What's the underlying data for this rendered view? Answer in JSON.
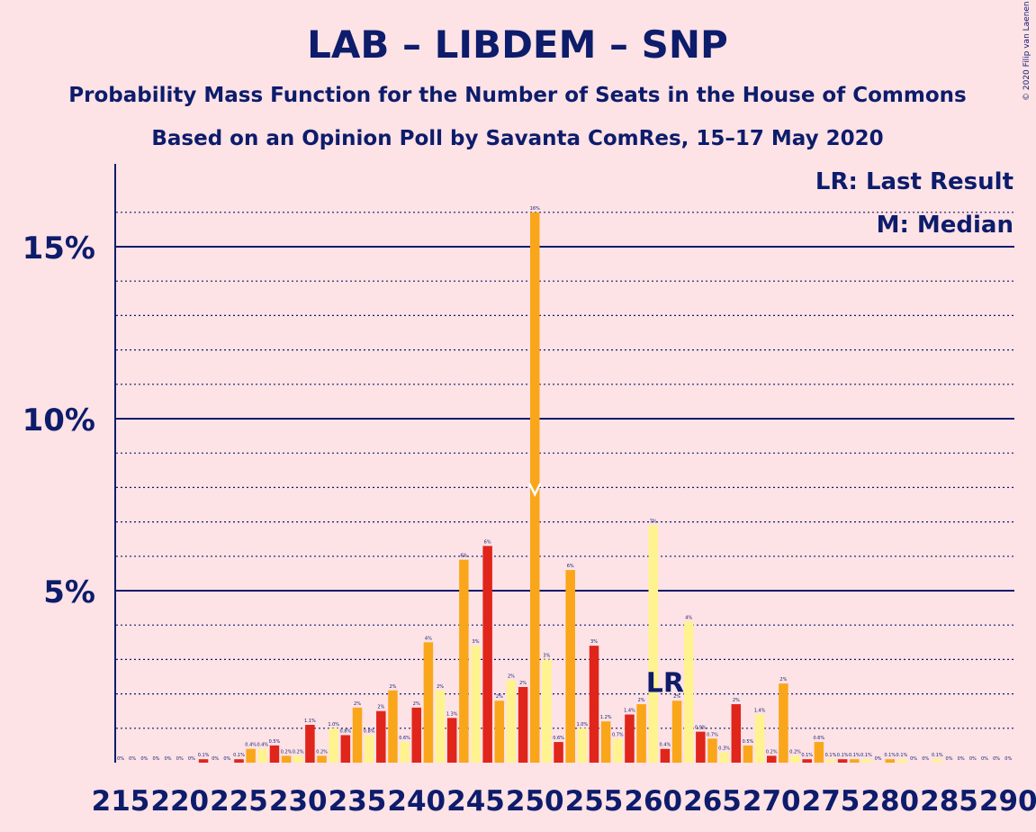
{
  "title": "LAB – LIBDEM – SNP",
  "subtitle1": "Probability Mass Function for the Number of Seats in the House of Commons",
  "subtitle2": "Based on an Opinion Poll by Savanta ComRes, 15–17 May 2020",
  "copyright": "© 2020 Filip van Laenen",
  "legend": {
    "lr": "LR: Last Result",
    "m": "M: Median"
  },
  "markers": {
    "lr_label": "LR",
    "lr_seat": 261,
    "median_seat": 250
  },
  "colors": {
    "background": "#FDE2E6",
    "text": "#0D1C6B",
    "red": "#E0251B",
    "orange": "#FAA61A",
    "yellow": "#FFF38F"
  },
  "chart_data": {
    "type": "bar",
    "xlim": [
      215,
      290
    ],
    "ylim": [
      0,
      17
    ],
    "y_ticks": [
      5,
      10,
      15
    ],
    "y_tick_labels": [
      "5%",
      "10%",
      "15%"
    ],
    "x_ticks": [
      215,
      220,
      225,
      230,
      235,
      240,
      245,
      250,
      255,
      260,
      265,
      270,
      275,
      280,
      285,
      290
    ],
    "x_tick_labels": [
      "215",
      "220",
      "225",
      "230",
      "235",
      "240",
      "245",
      "250",
      "255",
      "260",
      "265",
      "270",
      "275",
      "280",
      "285",
      "290"
    ],
    "grid": "major solid at 5% steps, dotted at 1% steps",
    "bars": [
      {
        "seat": 215,
        "value": 0.0,
        "label": "0%"
      },
      {
        "seat": 216,
        "value": 0.0,
        "label": "0%"
      },
      {
        "seat": 217,
        "value": 0.0,
        "label": "0%"
      },
      {
        "seat": 218,
        "value": 0.0,
        "label": "0%"
      },
      {
        "seat": 219,
        "value": 0.0,
        "label": "0%"
      },
      {
        "seat": 220,
        "value": 0.0,
        "label": "0%"
      },
      {
        "seat": 221,
        "value": 0.0,
        "label": "0%"
      },
      {
        "seat": 222,
        "value": 0.1,
        "label": "0.1%"
      },
      {
        "seat": 223,
        "value": 0.0,
        "label": "0%"
      },
      {
        "seat": 224,
        "value": 0.0,
        "label": "0%"
      },
      {
        "seat": 225,
        "value": 0.1,
        "label": "0.1%"
      },
      {
        "seat": 226,
        "value": 0.4,
        "label": "0.4%"
      },
      {
        "seat": 227,
        "value": 0.4,
        "label": "0.4%"
      },
      {
        "seat": 228,
        "value": 0.5,
        "label": "0.5%"
      },
      {
        "seat": 229,
        "value": 0.2,
        "label": "0.2%"
      },
      {
        "seat": 230,
        "value": 0.2,
        "label": "0.2%"
      },
      {
        "seat": 231,
        "value": 1.1,
        "label": "1.1%"
      },
      {
        "seat": 232,
        "value": 0.2,
        "label": "0.2%"
      },
      {
        "seat": 233,
        "value": 1.0,
        "label": "1.0%"
      },
      {
        "seat": 234,
        "value": 0.8,
        "label": "0.8%"
      },
      {
        "seat": 235,
        "value": 1.6,
        "label": "2%"
      },
      {
        "seat": 236,
        "value": 0.8,
        "label": "0.8%"
      },
      {
        "seat": 237,
        "value": 1.5,
        "label": "2%"
      },
      {
        "seat": 238,
        "value": 2.1,
        "label": "2%"
      },
      {
        "seat": 239,
        "value": 0.6,
        "label": "0.6%"
      },
      {
        "seat": 240,
        "value": 1.6,
        "label": "2%"
      },
      {
        "seat": 241,
        "value": 3.5,
        "label": "4%"
      },
      {
        "seat": 242,
        "value": 2.1,
        "label": "2%"
      },
      {
        "seat": 243,
        "value": 1.3,
        "label": "1.3%"
      },
      {
        "seat": 244,
        "value": 5.9,
        "label": "6%"
      },
      {
        "seat": 245,
        "value": 3.4,
        "label": "3%"
      },
      {
        "seat": 246,
        "value": 6.3,
        "label": "6%"
      },
      {
        "seat": 247,
        "value": 1.8,
        "label": "2%"
      },
      {
        "seat": 248,
        "value": 2.4,
        "label": "2%"
      },
      {
        "seat": 249,
        "value": 2.2,
        "label": "2%"
      },
      {
        "seat": 250,
        "value": 16.0,
        "label": "16%"
      },
      {
        "seat": 251,
        "value": 3.0,
        "label": "3%"
      },
      {
        "seat": 252,
        "value": 0.6,
        "label": "0.6%"
      },
      {
        "seat": 253,
        "value": 5.6,
        "label": "6%"
      },
      {
        "seat": 254,
        "value": 1.0,
        "label": "1.0%"
      },
      {
        "seat": 255,
        "value": 3.4,
        "label": "3%"
      },
      {
        "seat": 256,
        "value": 1.2,
        "label": "1.2%"
      },
      {
        "seat": 257,
        "value": 0.7,
        "label": "0.7%"
      },
      {
        "seat": 258,
        "value": 1.4,
        "label": "1.4%"
      },
      {
        "seat": 259,
        "value": 1.7,
        "label": "2%"
      },
      {
        "seat": 260,
        "value": 6.9,
        "label": "7%"
      },
      {
        "seat": 261,
        "value": 0.4,
        "label": "0.4%"
      },
      {
        "seat": 262,
        "value": 1.8,
        "label": "2%"
      },
      {
        "seat": 263,
        "value": 4.1,
        "label": "4%"
      },
      {
        "seat": 264,
        "value": 0.9,
        "label": "0.9%"
      },
      {
        "seat": 265,
        "value": 0.7,
        "label": "0.7%"
      },
      {
        "seat": 266,
        "value": 0.3,
        "label": "0.3%"
      },
      {
        "seat": 267,
        "value": 1.7,
        "label": "2%"
      },
      {
        "seat": 268,
        "value": 0.5,
        "label": "0.5%"
      },
      {
        "seat": 269,
        "value": 1.4,
        "label": "1.4%"
      },
      {
        "seat": 270,
        "value": 0.2,
        "label": "0.2%"
      },
      {
        "seat": 271,
        "value": 2.3,
        "label": "2%"
      },
      {
        "seat": 272,
        "value": 0.2,
        "label": "0.2%"
      },
      {
        "seat": 273,
        "value": 0.1,
        "label": "0.1%"
      },
      {
        "seat": 274,
        "value": 0.6,
        "label": "0.6%"
      },
      {
        "seat": 275,
        "value": 0.1,
        "label": "0.1%"
      },
      {
        "seat": 276,
        "value": 0.1,
        "label": "0.1%"
      },
      {
        "seat": 277,
        "value": 0.1,
        "label": "0.1%"
      },
      {
        "seat": 278,
        "value": 0.1,
        "label": "0.1%"
      },
      {
        "seat": 279,
        "value": 0.0,
        "label": "0%"
      },
      {
        "seat": 280,
        "value": 0.1,
        "label": "0.1%"
      },
      {
        "seat": 281,
        "value": 0.1,
        "label": "0.1%"
      },
      {
        "seat": 282,
        "value": 0.0,
        "label": "0%"
      },
      {
        "seat": 283,
        "value": 0.0,
        "label": "0%"
      },
      {
        "seat": 284,
        "value": 0.1,
        "label": "0.1%"
      },
      {
        "seat": 285,
        "value": 0.0,
        "label": "0%"
      },
      {
        "seat": 286,
        "value": 0.0,
        "label": "0%"
      },
      {
        "seat": 287,
        "value": 0.0,
        "label": "0%"
      },
      {
        "seat": 288,
        "value": 0.0,
        "label": "0%"
      },
      {
        "seat": 289,
        "value": 0.0,
        "label": "0%"
      },
      {
        "seat": 290,
        "value": 0.0,
        "label": "0%"
      }
    ]
  }
}
